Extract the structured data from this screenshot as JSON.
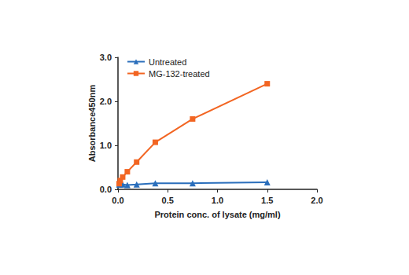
{
  "chart_data": {
    "type": "line",
    "x_label": "Protein conc. of lysate (mg/ml)",
    "y_label": "Absorbance450nm",
    "x": [
      0.012,
      0.023,
      0.047,
      0.094,
      0.1875,
      0.375,
      0.75,
      1.5
    ],
    "series": [
      {
        "name": "Untreated",
        "color": "#2a6ebb",
        "marker": "triangle",
        "values": [
          0.11,
          0.11,
          0.11,
          0.1,
          0.11,
          0.14,
          0.14,
          0.16
        ]
      },
      {
        "name": "MG-132-treated",
        "color": "#f26522",
        "marker": "square",
        "values": [
          0.13,
          0.2,
          0.28,
          0.4,
          0.62,
          1.07,
          1.6,
          2.4
        ]
      }
    ],
    "xlim": [
      0,
      2.0
    ],
    "xticks": [
      {
        "value": 0,
        "label": "0.0"
      },
      {
        "value": 0.5,
        "label": "0.5"
      },
      {
        "value": 1.0,
        "label": "1.0"
      },
      {
        "value": 1.5,
        "label": "1.5"
      },
      {
        "value": 2.0,
        "label": "2.0"
      }
    ],
    "ylim": [
      0,
      3.0
    ],
    "yticks": [
      {
        "value": 0,
        "label": "0.0"
      },
      {
        "value": 1.0,
        "label": "1.0"
      },
      {
        "value": 2.0,
        "label": "2.0"
      },
      {
        "value": 3.0,
        "label": "3.0"
      }
    ],
    "grid": false,
    "legend": "top-left"
  }
}
